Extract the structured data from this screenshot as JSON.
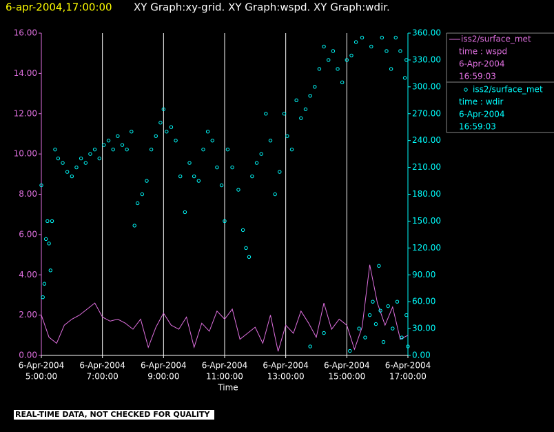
{
  "chart_data": {
    "type": "line-scatter",
    "title": "6-apr-2004,17:00:00",
    "subtitle": "XY Graph:xy-grid.  XY Graph:wspd.  XY Graph:wdir.",
    "x_label": "Time",
    "note": "REAL-TIME DATA, NOT CHECKED FOR QUALITY",
    "xlim": [
      5,
      17
    ],
    "xticks": [
      {
        "value": 5,
        "label": [
          "6-Apr-2004",
          "5:00:00"
        ]
      },
      {
        "value": 7,
        "label": [
          "6-Apr-2004",
          "7:00:00"
        ]
      },
      {
        "value": 9,
        "label": [
          "6-Apr-2004",
          "9:00:00"
        ]
      },
      {
        "value": 11,
        "label": [
          "6-Apr-2004",
          "11:00:00"
        ]
      },
      {
        "value": 13,
        "label": [
          "6-Apr-2004",
          "13:00:00"
        ]
      },
      {
        "value": 15,
        "label": [
          "6-Apr-2004",
          "15:00:00"
        ]
      },
      {
        "value": 17,
        "label": [
          "6-Apr-2004",
          "17:00:00"
        ]
      }
    ],
    "grid": true,
    "ylim": [
      0,
      16
    ],
    "yticks": [
      {
        "value": 0,
        "label": "0.00"
      },
      {
        "value": 2,
        "label": "2.00"
      },
      {
        "value": 4,
        "label": "4.00"
      },
      {
        "value": 6,
        "label": "6.00"
      },
      {
        "value": 8,
        "label": "8.00"
      },
      {
        "value": 10,
        "label": "10.00"
      },
      {
        "value": 12,
        "label": "12.00"
      },
      {
        "value": 14,
        "label": "14.00"
      },
      {
        "value": 16,
        "label": "16.00"
      }
    ],
    "y2lim": [
      0,
      360
    ],
    "y2ticks": [
      {
        "value": 0,
        "label": "0.00"
      },
      {
        "value": 30,
        "label": "30.00"
      },
      {
        "value": 60,
        "label": "60.00"
      },
      {
        "value": 90,
        "label": "90.00"
      },
      {
        "value": 120,
        "label": "120.00"
      },
      {
        "value": 150,
        "label": "150.00"
      },
      {
        "value": 180,
        "label": "180.00"
      },
      {
        "value": 210,
        "label": "210.00"
      },
      {
        "value": 240,
        "label": "240.00"
      },
      {
        "value": 270,
        "label": "270.00"
      },
      {
        "value": 300,
        "label": "300.00"
      },
      {
        "value": 330,
        "label": "330.00"
      },
      {
        "value": 360,
        "label": "360.00"
      }
    ],
    "series": [
      {
        "name": "iss2/surface_met",
        "legend": [
          "time : wspd",
          "6-Apr-2004",
          "16:59:03"
        ],
        "color": "#e070e0",
        "mark": "line",
        "x": [
          5,
          5.25,
          5.5,
          5.75,
          6,
          6.25,
          6.5,
          6.75,
          7,
          7.25,
          7.5,
          7.75,
          8,
          8.25,
          8.5,
          8.75,
          9,
          9.25,
          9.5,
          9.75,
          10,
          10.25,
          10.5,
          10.75,
          11,
          11.25,
          11.5,
          11.75,
          12,
          12.25,
          12.5,
          12.75,
          13,
          13.25,
          13.5,
          13.75,
          14,
          14.25,
          14.5,
          14.75,
          15,
          15.25,
          15.5,
          15.75,
          16,
          16.25,
          16.5,
          16.75,
          17
        ],
        "values": [
          2.0,
          0.9,
          0.6,
          1.5,
          1.8,
          2.0,
          2.3,
          2.6,
          1.9,
          1.7,
          1.8,
          1.6,
          1.3,
          1.8,
          0.4,
          1.4,
          2.1,
          1.5,
          1.3,
          1.9,
          0.4,
          1.6,
          1.2,
          2.2,
          1.8,
          2.3,
          0.8,
          1.1,
          1.4,
          0.6,
          2.0,
          0.2,
          1.5,
          1.1,
          2.2,
          1.6,
          0.9,
          2.6,
          1.3,
          1.8,
          1.5,
          0.3,
          1.4,
          4.5,
          2.6,
          1.5,
          2.4,
          0.8,
          1.0
        ]
      },
      {
        "name": "iss2/surface_met",
        "legend": [
          "time : wdir",
          "6-Apr-2004",
          "16:59:03"
        ],
        "color": "#00ffff",
        "mark": "circle",
        "axis": "y2",
        "x": [
          5.0,
          5.05,
          5.1,
          5.15,
          5.2,
          5.25,
          5.3,
          5.35,
          5.45,
          5.55,
          5.7,
          5.85,
          6.0,
          6.15,
          6.3,
          6.45,
          6.6,
          6.75,
          6.9,
          7.05,
          7.2,
          7.35,
          7.5,
          7.65,
          7.8,
          7.95,
          8.05,
          8.15,
          8.3,
          8.45,
          8.6,
          8.75,
          8.9,
          9.0,
          9.1,
          9.25,
          9.4,
          9.55,
          9.7,
          9.85,
          10.0,
          10.15,
          10.3,
          10.45,
          10.6,
          10.75,
          10.9,
          11.0,
          11.1,
          11.25,
          11.45,
          11.6,
          11.7,
          11.8,
          11.9,
          12.05,
          12.2,
          12.35,
          12.5,
          12.65,
          12.8,
          12.95,
          13.05,
          13.2,
          13.35,
          13.5,
          13.65,
          13.8,
          13.95,
          14.1,
          14.25,
          14.4,
          14.55,
          14.7,
          14.85,
          15.0,
          15.15,
          15.3,
          15.5,
          15.8,
          16.05,
          16.15,
          16.3,
          16.45,
          16.6,
          16.75,
          16.9,
          16.95,
          13.8,
          14.25,
          15.1,
          15.4,
          15.6,
          15.75,
          15.85,
          15.95,
          16.1,
          16.2,
          16.35,
          16.5,
          16.65,
          16.8,
          16.95,
          17.0
        ],
        "values": [
          190,
          65,
          80,
          130,
          150,
          125,
          95,
          150,
          230,
          220,
          215,
          205,
          200,
          210,
          220,
          215,
          225,
          230,
          220,
          235,
          240,
          230,
          245,
          235,
          230,
          250,
          145,
          170,
          180,
          195,
          230,
          245,
          260,
          275,
          250,
          255,
          240,
          200,
          160,
          215,
          200,
          195,
          230,
          250,
          240,
          210,
          190,
          150,
          230,
          210,
          185,
          140,
          120,
          110,
          200,
          215,
          225,
          270,
          240,
          180,
          205,
          270,
          245,
          230,
          285,
          265,
          275,
          290,
          300,
          320,
          345,
          330,
          340,
          320,
          305,
          330,
          335,
          350,
          355,
          345,
          100,
          355,
          340,
          320,
          355,
          340,
          310,
          330,
          10,
          25,
          5,
          30,
          20,
          45,
          60,
          35,
          50,
          15,
          55,
          30,
          60,
          20,
          45,
          10
        ]
      }
    ]
  }
}
